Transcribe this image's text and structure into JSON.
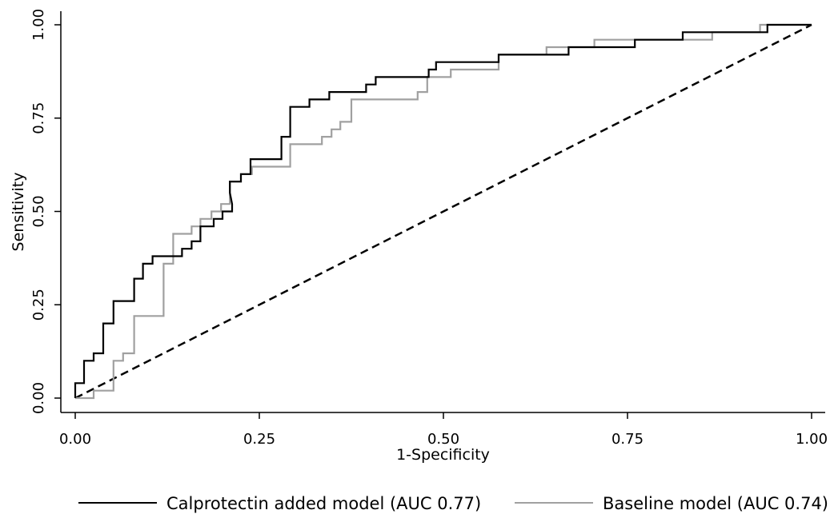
{
  "chart_data": {
    "type": "line",
    "xlabel": "1-Specificity",
    "ylabel": "Sensitivity",
    "xlim": [
      0,
      1
    ],
    "ylim": [
      0,
      1
    ],
    "x_ticks": [
      "0.00",
      "0.25",
      "0.50",
      "0.75",
      "1.00"
    ],
    "y_ticks": [
      "0.00",
      "0.25",
      "0.50",
      "0.75",
      "1.00"
    ],
    "grid": false,
    "legend_position": "bottom",
    "reference_line": {
      "style": "dashed",
      "color": "#000000",
      "points": [
        [
          0,
          0
        ],
        [
          1,
          1
        ]
      ]
    },
    "series": [
      {
        "name": "Calprotectin added model (AUC 0.77)",
        "color": "#000000",
        "points": [
          [
            0,
            0
          ],
          [
            0,
            0.04
          ],
          [
            0.012,
            0.04
          ],
          [
            0.012,
            0.1
          ],
          [
            0.025,
            0.1
          ],
          [
            0.025,
            0.12
          ],
          [
            0.038,
            0.12
          ],
          [
            0.038,
            0.2
          ],
          [
            0.052,
            0.2
          ],
          [
            0.052,
            0.26
          ],
          [
            0.08,
            0.26
          ],
          [
            0.08,
            0.32
          ],
          [
            0.092,
            0.32
          ],
          [
            0.092,
            0.36
          ],
          [
            0.105,
            0.36
          ],
          [
            0.105,
            0.38
          ],
          [
            0.145,
            0.38
          ],
          [
            0.145,
            0.4
          ],
          [
            0.158,
            0.4
          ],
          [
            0.158,
            0.42
          ],
          [
            0.17,
            0.42
          ],
          [
            0.17,
            0.46
          ],
          [
            0.188,
            0.46
          ],
          [
            0.188,
            0.48
          ],
          [
            0.2,
            0.48
          ],
          [
            0.2,
            0.5
          ],
          [
            0.213,
            0.5
          ],
          [
            0.213,
            0.52
          ],
          [
            0.21,
            0.55
          ],
          [
            0.21,
            0.58
          ],
          [
            0.225,
            0.58
          ],
          [
            0.225,
            0.6
          ],
          [
            0.238,
            0.6
          ],
          [
            0.238,
            0.64
          ],
          [
            0.28,
            0.64
          ],
          [
            0.28,
            0.7
          ],
          [
            0.292,
            0.7
          ],
          [
            0.292,
            0.78
          ],
          [
            0.318,
            0.78
          ],
          [
            0.318,
            0.8
          ],
          [
            0.345,
            0.8
          ],
          [
            0.345,
            0.82
          ],
          [
            0.395,
            0.82
          ],
          [
            0.395,
            0.84
          ],
          [
            0.408,
            0.84
          ],
          [
            0.408,
            0.86
          ],
          [
            0.48,
            0.86
          ],
          [
            0.48,
            0.88
          ],
          [
            0.49,
            0.88
          ],
          [
            0.49,
            0.9
          ],
          [
            0.575,
            0.9
          ],
          [
            0.575,
            0.92
          ],
          [
            0.64,
            0.92
          ],
          [
            0.64,
            0.92
          ],
          [
            0.67,
            0.92
          ],
          [
            0.67,
            0.94
          ],
          [
            0.76,
            0.94
          ],
          [
            0.76,
            0.96
          ],
          [
            0.825,
            0.96
          ],
          [
            0.825,
            0.98
          ],
          [
            0.94,
            0.98
          ],
          [
            0.94,
            1.0
          ],
          [
            1,
            1
          ]
        ]
      },
      {
        "name": "Baseline model (AUC 0.74)",
        "color": "#a0a0a0",
        "points": [
          [
            0,
            0
          ],
          [
            0.025,
            0
          ],
          [
            0.025,
            0.02
          ],
          [
            0.052,
            0.02
          ],
          [
            0.052,
            0.1
          ],
          [
            0.065,
            0.1
          ],
          [
            0.065,
            0.12
          ],
          [
            0.08,
            0.12
          ],
          [
            0.08,
            0.22
          ],
          [
            0.12,
            0.22
          ],
          [
            0.12,
            0.36
          ],
          [
            0.133,
            0.36
          ],
          [
            0.133,
            0.44
          ],
          [
            0.158,
            0.44
          ],
          [
            0.158,
            0.46
          ],
          [
            0.17,
            0.46
          ],
          [
            0.17,
            0.48
          ],
          [
            0.185,
            0.48
          ],
          [
            0.185,
            0.5
          ],
          [
            0.198,
            0.5
          ],
          [
            0.198,
            0.52
          ],
          [
            0.21,
            0.52
          ],
          [
            0.21,
            0.58
          ],
          [
            0.225,
            0.58
          ],
          [
            0.225,
            0.6
          ],
          [
            0.24,
            0.6
          ],
          [
            0.24,
            0.62
          ],
          [
            0.292,
            0.62
          ],
          [
            0.292,
            0.68
          ],
          [
            0.335,
            0.68
          ],
          [
            0.335,
            0.7
          ],
          [
            0.348,
            0.7
          ],
          [
            0.348,
            0.72
          ],
          [
            0.36,
            0.72
          ],
          [
            0.36,
            0.74
          ],
          [
            0.375,
            0.74
          ],
          [
            0.375,
            0.8
          ],
          [
            0.465,
            0.8
          ],
          [
            0.465,
            0.82
          ],
          [
            0.478,
            0.82
          ],
          [
            0.478,
            0.86
          ],
          [
            0.495,
            0.86
          ],
          [
            0.495,
            0.86
          ],
          [
            0.51,
            0.86
          ],
          [
            0.51,
            0.88
          ],
          [
            0.575,
            0.88
          ],
          [
            0.575,
            0.92
          ],
          [
            0.64,
            0.92
          ],
          [
            0.64,
            0.94
          ],
          [
            0.705,
            0.94
          ],
          [
            0.705,
            0.96
          ],
          [
            0.865,
            0.96
          ],
          [
            0.865,
            0.98
          ],
          [
            0.93,
            0.98
          ],
          [
            0.93,
            1.0
          ],
          [
            1,
            1
          ]
        ]
      }
    ]
  }
}
